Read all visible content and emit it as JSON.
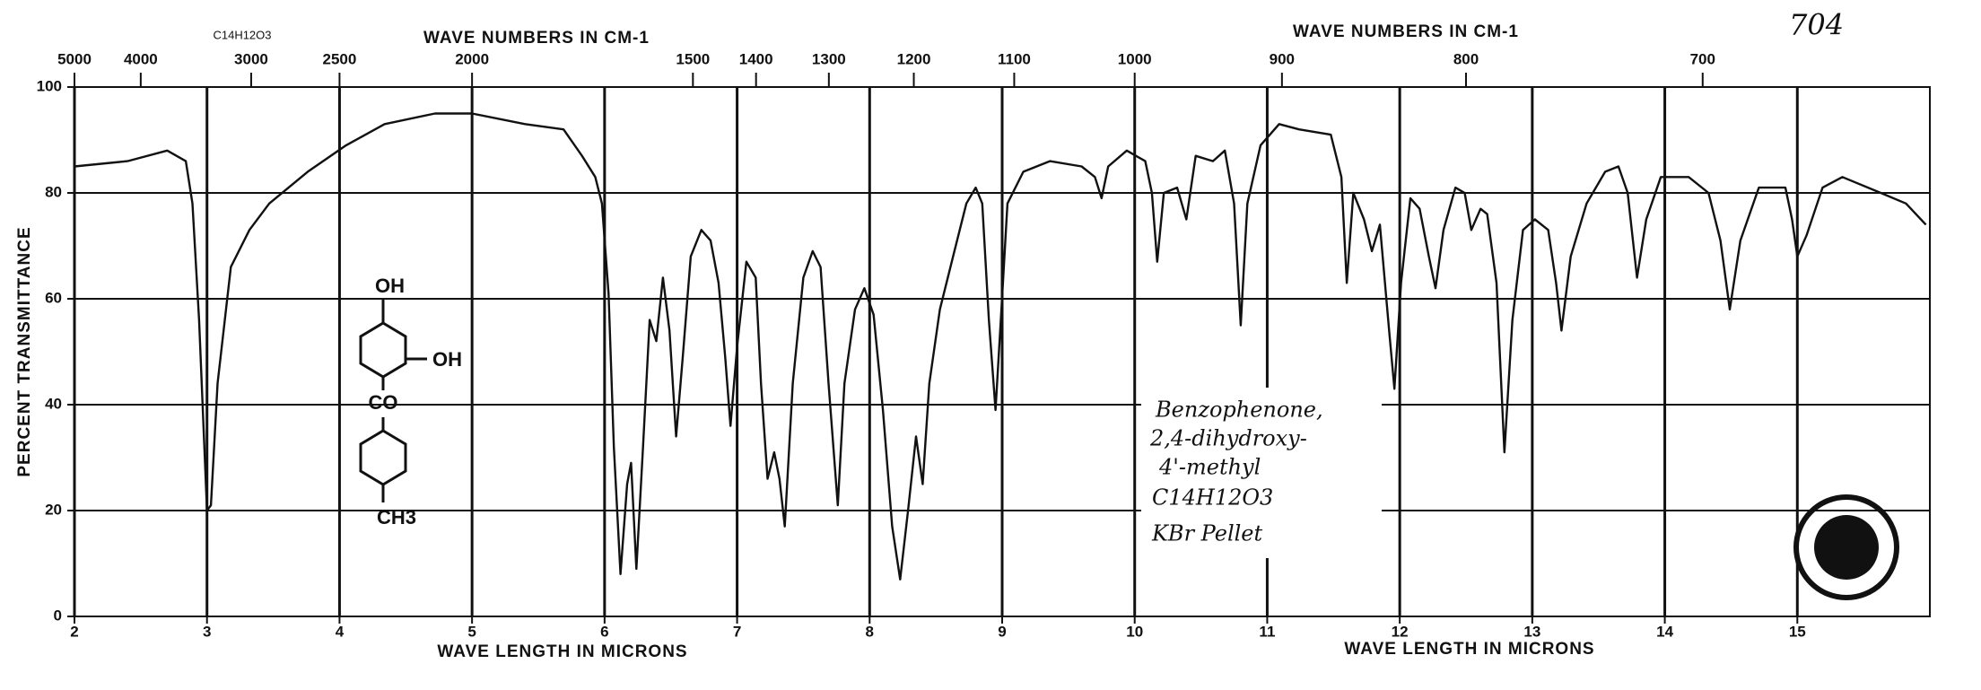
{
  "chart_data": {
    "type": "line",
    "top_left_label": "C14H12O3",
    "sheet_number": "704",
    "top_axis_title_left": "WAVE NUMBERS IN CM-1",
    "top_axis_title_right": "WAVE NUMBERS IN CM-1",
    "x_label_left": "WAVE LENGTH IN MICRONS",
    "x_label_right": "WAVE LENGTH IN MICRONS",
    "y_label": "PERCENT TRANSMITTANCE",
    "structure_labels": [
      "OH",
      "OH",
      "CO",
      "CH3"
    ],
    "annotation": [
      "Benzophenone,",
      "2,4-dihydroxy-",
      "4'-methyl",
      "C14H12O3",
      "KBr Pellet"
    ],
    "color": "#111111",
    "grid": true,
    "xlim": [
      2,
      16
    ],
    "xticks": [
      2,
      3,
      4,
      5,
      6,
      7,
      8,
      9,
      10,
      11,
      12,
      13,
      14,
      15
    ],
    "ylim": [
      0,
      100
    ],
    "yticks": [
      0,
      20,
      40,
      60,
      80,
      100
    ],
    "top_axis_ticks": [
      5000,
      4000,
      3000,
      2500,
      2000,
      1500,
      1400,
      1300,
      1200,
      1100,
      1000,
      900,
      800,
      700
    ],
    "x": [
      2.0,
      2.4,
      2.7,
      2.84,
      2.89,
      2.94,
      3.0,
      3.03,
      3.08,
      3.18,
      3.32,
      3.47,
      3.76,
      4.05,
      4.34,
      4.72,
      5.0,
      5.4,
      5.69,
      5.83,
      5.93,
      5.98,
      6.03,
      6.07,
      6.12,
      6.17,
      6.2,
      6.24,
      6.29,
      6.34,
      6.39,
      6.44,
      6.49,
      6.54,
      6.59,
      6.65,
      6.73,
      6.8,
      6.86,
      6.91,
      6.95,
      7.0,
      7.07,
      7.14,
      7.18,
      7.23,
      7.28,
      7.32,
      7.36,
      7.42,
      7.5,
      7.57,
      7.63,
      7.69,
      7.76,
      7.81,
      7.89,
      7.96,
      8.03,
      8.1,
      8.17,
      8.23,
      8.29,
      8.35,
      8.4,
      8.45,
      8.53,
      8.63,
      8.73,
      8.8,
      8.85,
      8.9,
      8.95,
      8.99,
      9.04,
      9.16,
      9.36,
      9.6,
      9.7,
      9.75,
      9.8,
      9.94,
      10.08,
      10.13,
      10.17,
      10.22,
      10.32,
      10.39,
      10.46,
      10.59,
      10.68,
      10.75,
      10.8,
      10.85,
      10.95,
      11.09,
      11.24,
      11.48,
      11.56,
      11.6,
      11.65,
      11.73,
      11.79,
      11.85,
      11.92,
      11.96,
      12.01,
      12.08,
      12.15,
      12.22,
      12.27,
      12.33,
      12.42,
      12.49,
      12.54,
      12.61,
      12.66,
      12.73,
      12.79,
      12.85,
      12.93,
      13.02,
      13.12,
      13.18,
      13.22,
      13.29,
      13.41,
      13.55,
      13.65,
      13.72,
      13.79,
      13.86,
      13.97,
      14.18,
      14.33,
      14.42,
      14.49,
      14.57,
      14.71,
      14.91,
      14.96,
      15.0,
      15.07,
      15.19,
      15.34,
      15.63,
      15.82,
      15.97
    ],
    "values": [
      85,
      86,
      88,
      86,
      78,
      56,
      20,
      21,
      44,
      66,
      73,
      78,
      84,
      89,
      93,
      95,
      95,
      93,
      92,
      87,
      83,
      78,
      61,
      32,
      8,
      25,
      29,
      9,
      32,
      56,
      52,
      64,
      54,
      34,
      49,
      68,
      73,
      71,
      63,
      49,
      36,
      51,
      67,
      64,
      44,
      26,
      31,
      26,
      17,
      44,
      64,
      69,
      66,
      44,
      21,
      44,
      58,
      62,
      57,
      39,
      17,
      7,
      20,
      34,
      25,
      44,
      58,
      68,
      78,
      81,
      78,
      56,
      39,
      56,
      78,
      84,
      86,
      85,
      83,
      79,
      85,
      88,
      86,
      80,
      67,
      80,
      81,
      75,
      87,
      86,
      88,
      78,
      55,
      78,
      89,
      93,
      92,
      91,
      83,
      63,
      80,
      75,
      69,
      74,
      54,
      43,
      63,
      79,
      77,
      68,
      62,
      73,
      81,
      80,
      73,
      77,
      76,
      63,
      31,
      56,
      73,
      75,
      73,
      63,
      54,
      68,
      78,
      84,
      85,
      80,
      64,
      75,
      83,
      83,
      80,
      71,
      58,
      71,
      81,
      81,
      75,
      68,
      72,
      81,
      83,
      80,
      78,
      74
    ]
  }
}
